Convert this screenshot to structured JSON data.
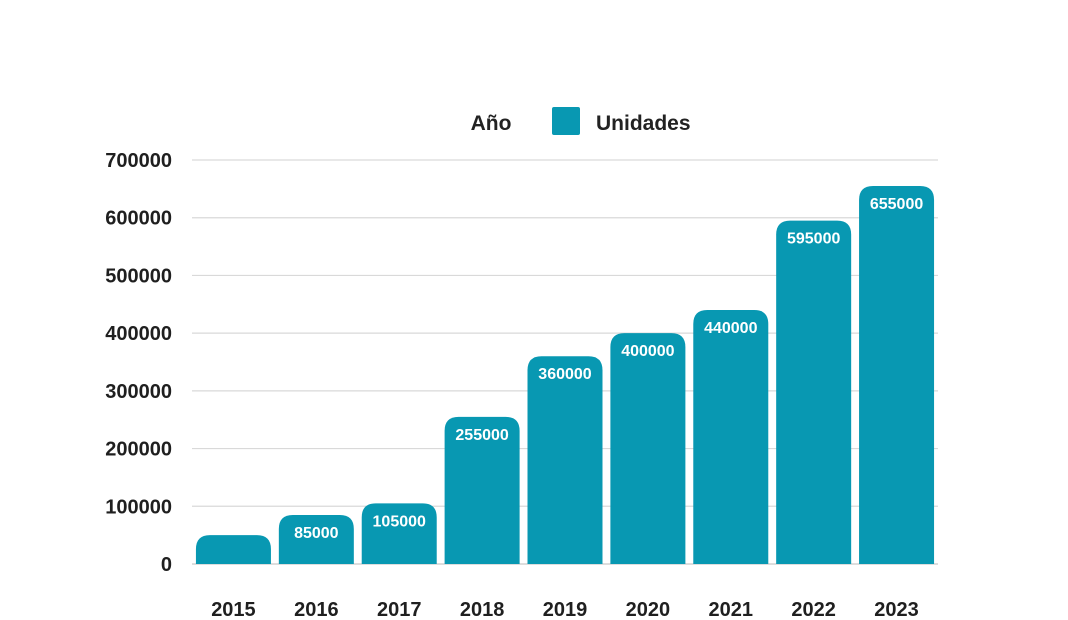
{
  "legend": {
    "label_prefix": "Año",
    "series_name": "Unidades"
  },
  "colors": {
    "bar": "#0898B2",
    "grid": "#D9D9D9",
    "text": "#1F1F1F",
    "label": "#FFFFFF"
  },
  "chart_data": {
    "type": "bar",
    "title": "",
    "xlabel": "",
    "ylabel": "",
    "categories": [
      "2015",
      "2016",
      "2017",
      "2018",
      "2019",
      "2020",
      "2021",
      "2022",
      "2023"
    ],
    "series": [
      {
        "name": "Unidades",
        "values": [
          50000,
          85000,
          105000,
          255000,
          360000,
          400000,
          440000,
          595000,
          655000
        ],
        "data_labels": [
          "",
          "85000",
          "105000",
          "255000",
          "360000",
          "400000",
          "440000",
          "595000",
          "655000"
        ]
      }
    ],
    "ylim": [
      0,
      700000
    ],
    "yticks": [
      "0",
      "100000",
      "200000",
      "300000",
      "400000",
      "500000",
      "600000",
      "700000"
    ],
    "grid": true,
    "legend_position": "top-center"
  }
}
